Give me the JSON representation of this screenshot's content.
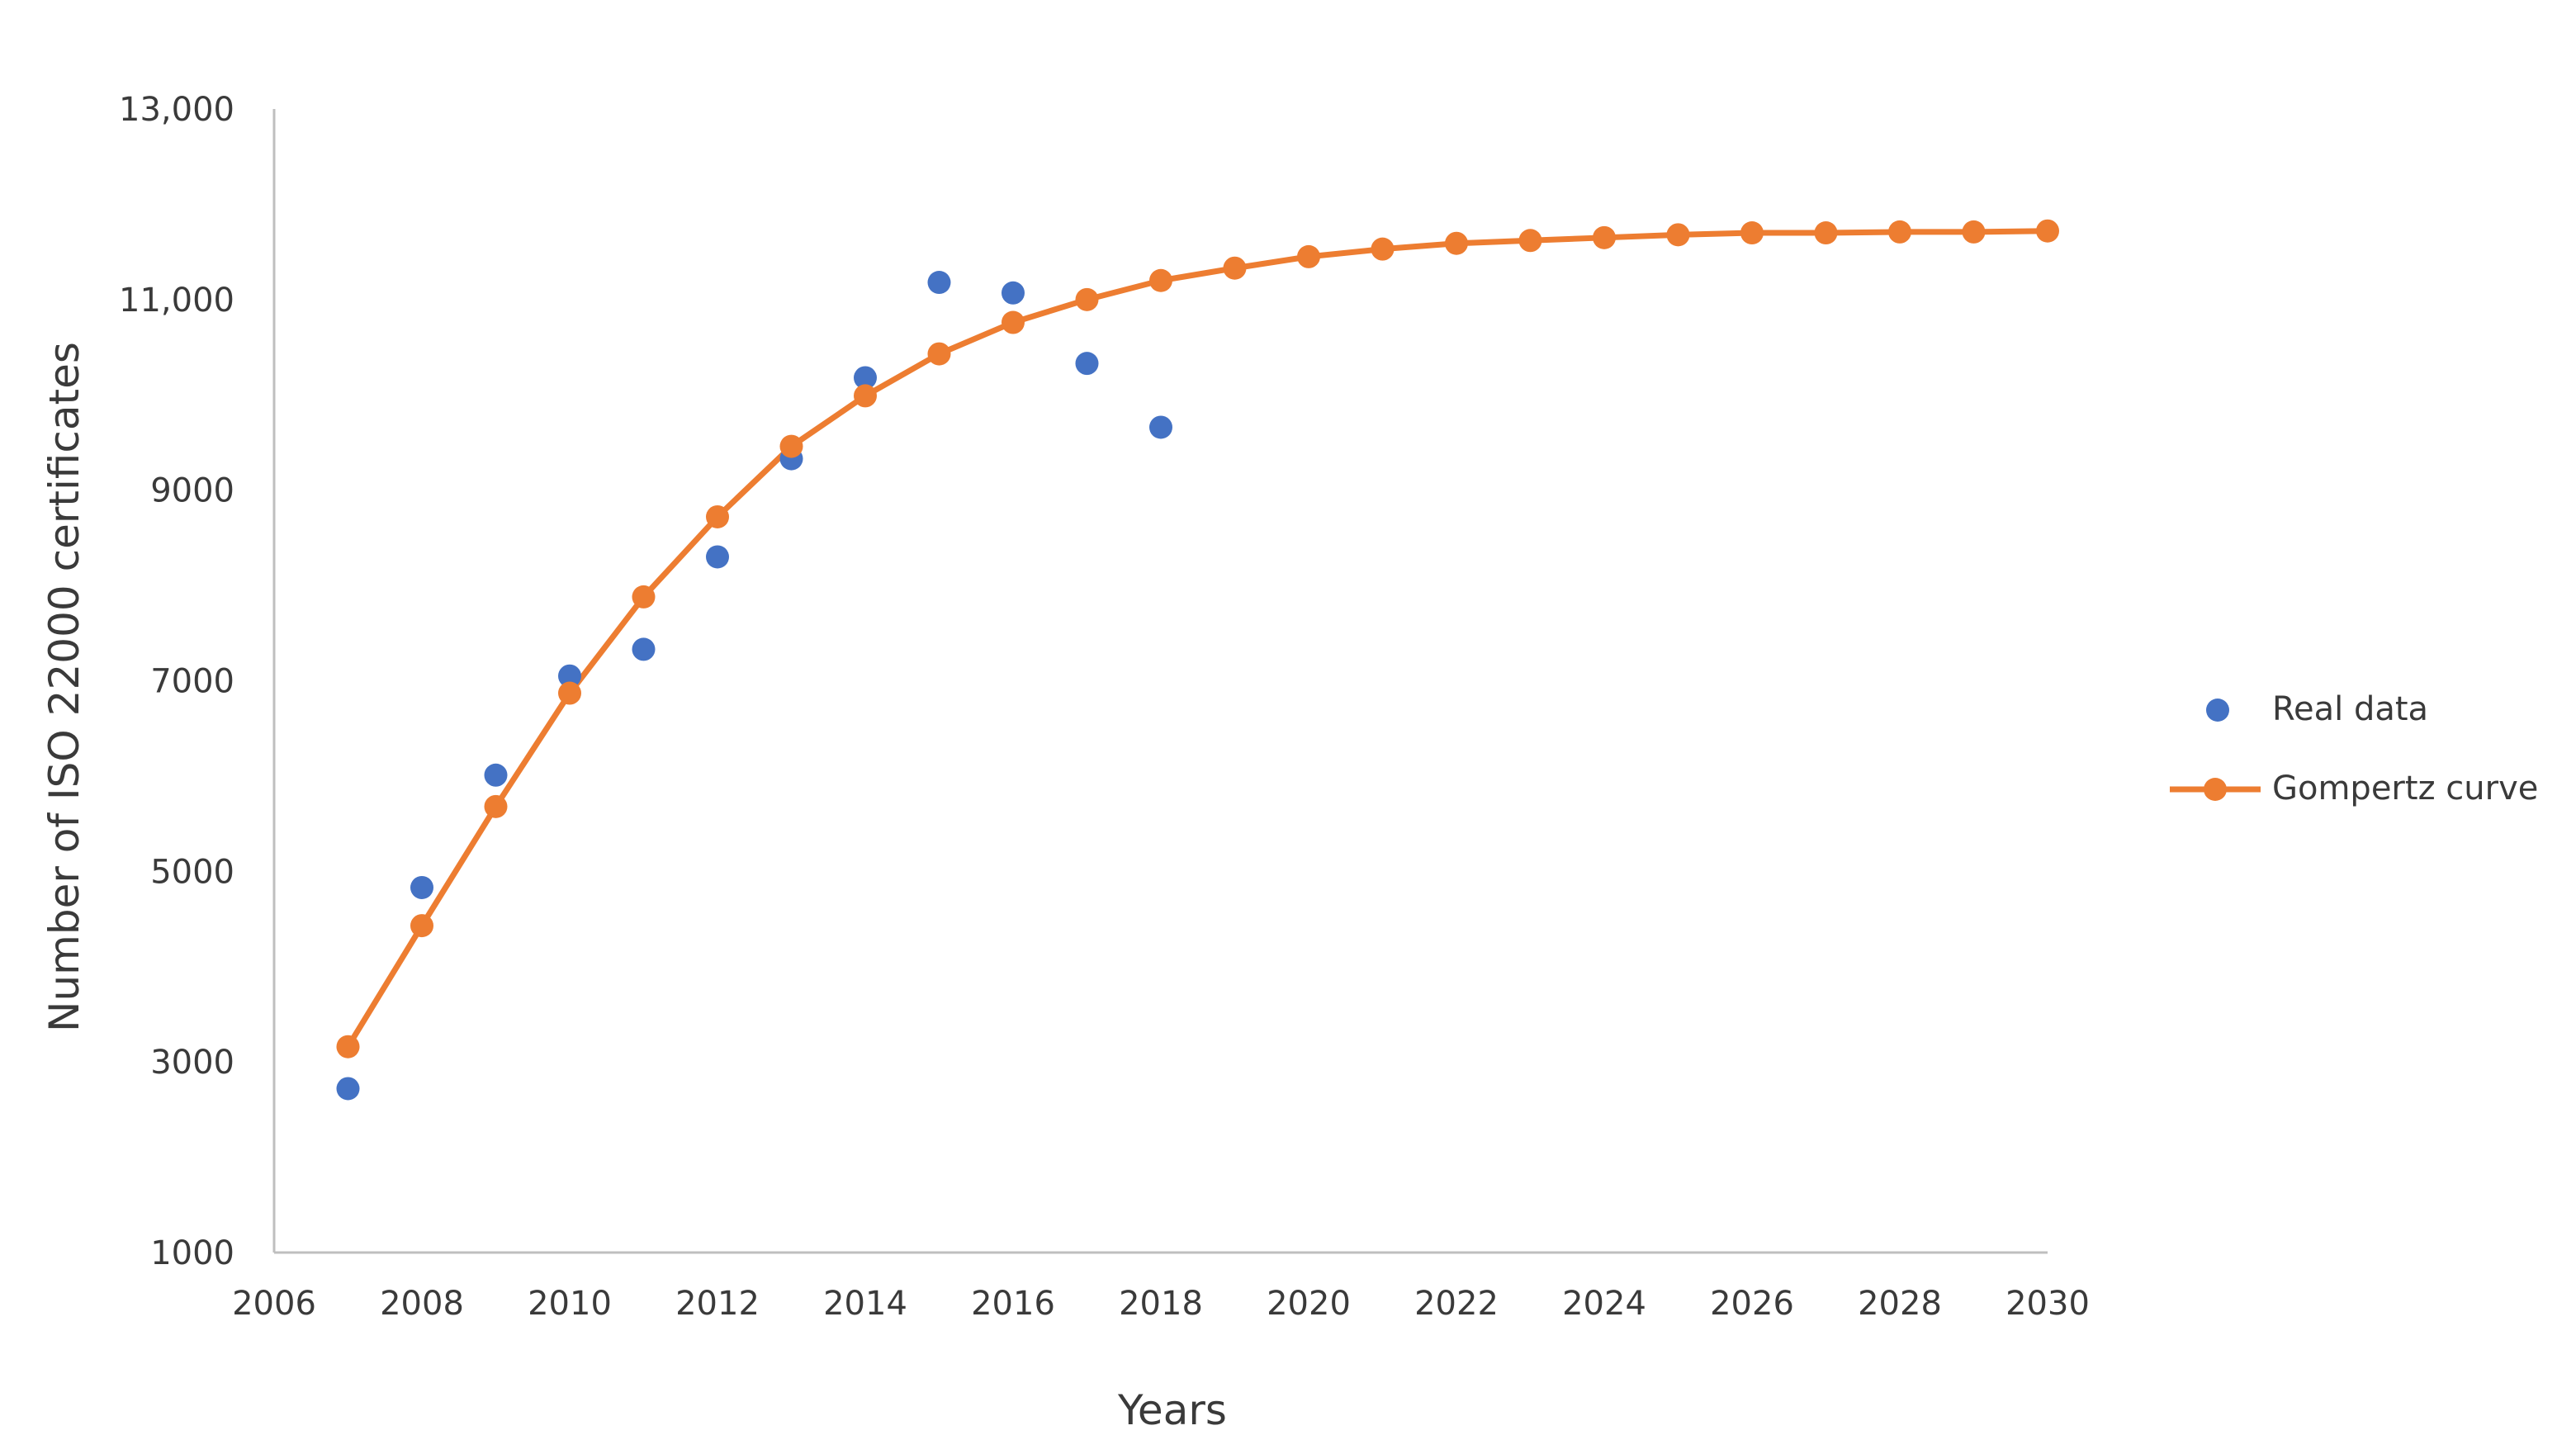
{
  "chart_data": {
    "type": "scatter",
    "xlabel": "Years",
    "ylabel": "Number of ISO 22000 certificates",
    "xlim": [
      2006,
      2030
    ],
    "ylim": [
      1000,
      13000
    ],
    "x_ticks": [
      "2006",
      "2008",
      "2010",
      "2012",
      "2014",
      "2016",
      "2018",
      "2020",
      "2022",
      "2024",
      "2026",
      "2028",
      "2030"
    ],
    "y_ticks": [
      "1000",
      "3000",
      "5000",
      "7000",
      "9000",
      "11,000",
      "13,000"
    ],
    "y_tick_values": [
      1000,
      3000,
      5000,
      7000,
      9000,
      11000,
      13000
    ],
    "x_tick_values": [
      2006,
      2008,
      2010,
      2012,
      2014,
      2016,
      2018,
      2020,
      2022,
      2024,
      2026,
      2028,
      2030
    ],
    "grid": false,
    "legend_position": "right",
    "series": [
      {
        "name": "Real data",
        "kind": "markers",
        "color": "#4472C4",
        "x": [
          2007,
          2008,
          2009,
          2010,
          2011,
          2012,
          2013,
          2014,
          2015,
          2016,
          2017,
          2018
        ],
        "y": [
          2720,
          4830,
          6010,
          7050,
          7330,
          8300,
          9330,
          10180,
          11180,
          11070,
          10330,
          9660
        ]
      },
      {
        "name": "Gompertz curve",
        "kind": "line-markers",
        "color": "#ED7D31",
        "x": [
          2007,
          2008,
          2009,
          2010,
          2011,
          2012,
          2013,
          2014,
          2015,
          2016,
          2017,
          2018,
          2019,
          2020,
          2021,
          2022,
          2023,
          2024,
          2025,
          2026,
          2027,
          2028,
          2029,
          2030
        ],
        "y": [
          3160,
          4430,
          5680,
          6870,
          7880,
          8720,
          9460,
          9990,
          10430,
          10760,
          11000,
          11200,
          11330,
          11450,
          11530,
          11590,
          11620,
          11650,
          11680,
          11700,
          11700,
          11710,
          11710,
          11720
        ]
      }
    ]
  }
}
